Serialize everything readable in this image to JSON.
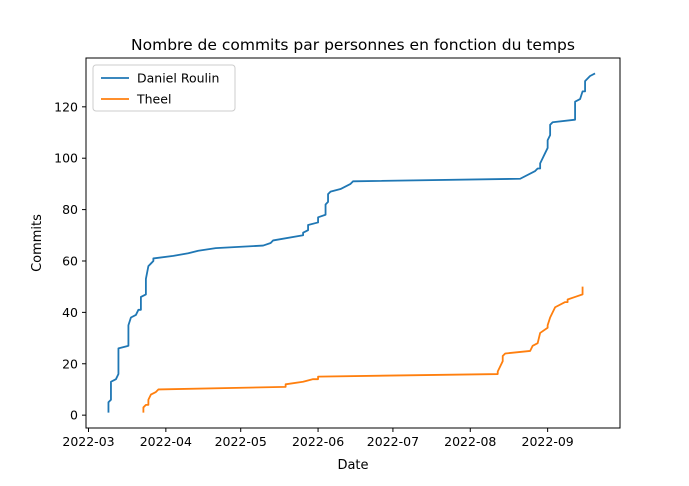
{
  "chart_data": {
    "type": "line",
    "title": "Nombre de commits par personnes en fonction du temps",
    "xlabel": "Date",
    "ylabel": "Commits",
    "x_axis": {
      "kind": "date",
      "range": [
        "2022-02-28",
        "2022-09-30"
      ],
      "ticks": [
        "2022-03-01",
        "2022-04-01",
        "2022-05-01",
        "2022-06-01",
        "2022-07-01",
        "2022-08-01",
        "2022-09-01"
      ],
      "tick_labels": [
        "2022-03",
        "2022-04",
        "2022-05",
        "2022-06",
        "2022-07",
        "2022-08",
        "2022-09"
      ]
    },
    "y_axis": {
      "range": [
        -5,
        139
      ],
      "ticks": [
        0,
        20,
        40,
        60,
        80,
        100,
        120
      ],
      "tick_labels": [
        "0",
        "20",
        "40",
        "60",
        "80",
        "100",
        "120"
      ]
    },
    "grid": false,
    "legend": {
      "position": "top-left"
    },
    "series": [
      {
        "name": "Daniel Roulin",
        "color": "#1f77b4",
        "points": [
          [
            "2022-03-09",
            1
          ],
          [
            "2022-03-09",
            5
          ],
          [
            "2022-03-10",
            6
          ],
          [
            "2022-03-10",
            13
          ],
          [
            "2022-03-12",
            14
          ],
          [
            "2022-03-13",
            16
          ],
          [
            "2022-03-13",
            26
          ],
          [
            "2022-03-17",
            27
          ],
          [
            "2022-03-17",
            35
          ],
          [
            "2022-03-18",
            38
          ],
          [
            "2022-03-20",
            39
          ],
          [
            "2022-03-21",
            41
          ],
          [
            "2022-03-22",
            41
          ],
          [
            "2022-03-22",
            46
          ],
          [
            "2022-03-24",
            47
          ],
          [
            "2022-03-24",
            53
          ],
          [
            "2022-03-25",
            58
          ],
          [
            "2022-03-26",
            59
          ],
          [
            "2022-03-27",
            60
          ],
          [
            "2022-03-27",
            61
          ],
          [
            "2022-04-04",
            62
          ],
          [
            "2022-04-10",
            63
          ],
          [
            "2022-04-14",
            64
          ],
          [
            "2022-04-21",
            65
          ],
          [
            "2022-05-10",
            66
          ],
          [
            "2022-05-13",
            67
          ],
          [
            "2022-05-14",
            68
          ],
          [
            "2022-05-26",
            70
          ],
          [
            "2022-05-26",
            71
          ],
          [
            "2022-05-28",
            72
          ],
          [
            "2022-05-28",
            74
          ],
          [
            "2022-06-01",
            75
          ],
          [
            "2022-06-01",
            77
          ],
          [
            "2022-06-04",
            78
          ],
          [
            "2022-06-04",
            82
          ],
          [
            "2022-06-05",
            83
          ],
          [
            "2022-06-05",
            86
          ],
          [
            "2022-06-06",
            87
          ],
          [
            "2022-06-10",
            88
          ],
          [
            "2022-06-14",
            90
          ],
          [
            "2022-06-15",
            91
          ],
          [
            "2022-08-21",
            92
          ],
          [
            "2022-08-27",
            95
          ],
          [
            "2022-08-28",
            96
          ],
          [
            "2022-08-29",
            96
          ],
          [
            "2022-08-29",
            98
          ],
          [
            "2022-08-30",
            100
          ],
          [
            "2022-08-31",
            102
          ],
          [
            "2022-09-01",
            104
          ],
          [
            "2022-09-01",
            107
          ],
          [
            "2022-09-02",
            109
          ],
          [
            "2022-09-02",
            113
          ],
          [
            "2022-09-03",
            114
          ],
          [
            "2022-09-12",
            115
          ],
          [
            "2022-09-12",
            122
          ],
          [
            "2022-09-14",
            123
          ],
          [
            "2022-09-15",
            126
          ],
          [
            "2022-09-16",
            126
          ],
          [
            "2022-09-16",
            130
          ],
          [
            "2022-09-18",
            132
          ],
          [
            "2022-09-20",
            133
          ]
        ]
      },
      {
        "name": "Theel",
        "color": "#ff7f0e",
        "points": [
          [
            "2022-03-23",
            1
          ],
          [
            "2022-03-23",
            3
          ],
          [
            "2022-03-24",
            4
          ],
          [
            "2022-03-25",
            4
          ],
          [
            "2022-03-25",
            6
          ],
          [
            "2022-03-26",
            8
          ],
          [
            "2022-03-28",
            9
          ],
          [
            "2022-03-29",
            10
          ],
          [
            "2022-05-19",
            11
          ],
          [
            "2022-05-19",
            12
          ],
          [
            "2022-05-26",
            13
          ],
          [
            "2022-05-30",
            14
          ],
          [
            "2022-06-01",
            14
          ],
          [
            "2022-06-01",
            15
          ],
          [
            "2022-08-12",
            16
          ],
          [
            "2022-08-12",
            17
          ],
          [
            "2022-08-13",
            19
          ],
          [
            "2022-08-14",
            21
          ],
          [
            "2022-08-14",
            23
          ],
          [
            "2022-08-15",
            24
          ],
          [
            "2022-08-25",
            25
          ],
          [
            "2022-08-26",
            27
          ],
          [
            "2022-08-28",
            28
          ],
          [
            "2022-08-29",
            32
          ],
          [
            "2022-09-01",
            34
          ],
          [
            "2022-09-01",
            35
          ],
          [
            "2022-09-02",
            38
          ],
          [
            "2022-09-03",
            40
          ],
          [
            "2022-09-04",
            42
          ],
          [
            "2022-09-08",
            44
          ],
          [
            "2022-09-09",
            44
          ],
          [
            "2022-09-09",
            45
          ],
          [
            "2022-09-12",
            46
          ],
          [
            "2022-09-15",
            47
          ],
          [
            "2022-09-15",
            50
          ]
        ]
      }
    ]
  }
}
